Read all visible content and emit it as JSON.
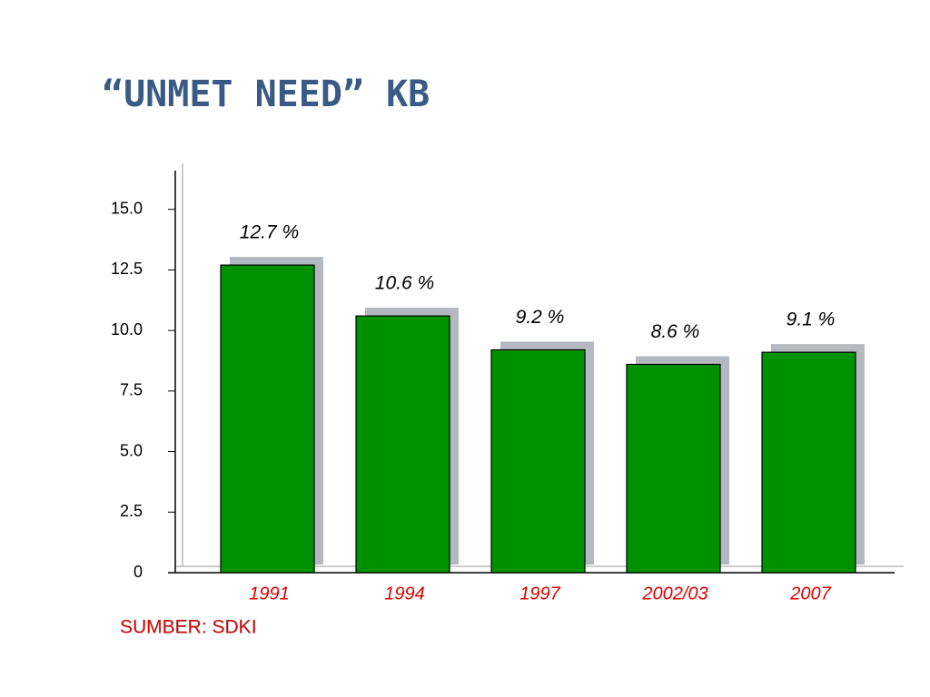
{
  "chart_data": {
    "type": "bar",
    "title": "“UNMET NEED” KB",
    "categories": [
      "1991",
      "1994",
      "1997",
      "2002/03",
      "2007"
    ],
    "values": [
      12.7,
      10.6,
      9.2,
      8.6,
      9.1
    ],
    "value_labels": [
      "12.7 %",
      "10.6 %",
      "9.2 %",
      "8.6 %",
      "9.1 %"
    ],
    "color": "#009100",
    "ylim": [
      0,
      16.6
    ],
    "yticks": [
      0,
      2.5,
      {
        "value": 5,
        "label": "5.0"
      },
      7.5,
      {
        "value": 10,
        "label": "10.0"
      },
      12.5,
      {
        "value": 15,
        "label": "15.0"
      }
    ],
    "source": "SUMBER: SDKI"
  }
}
